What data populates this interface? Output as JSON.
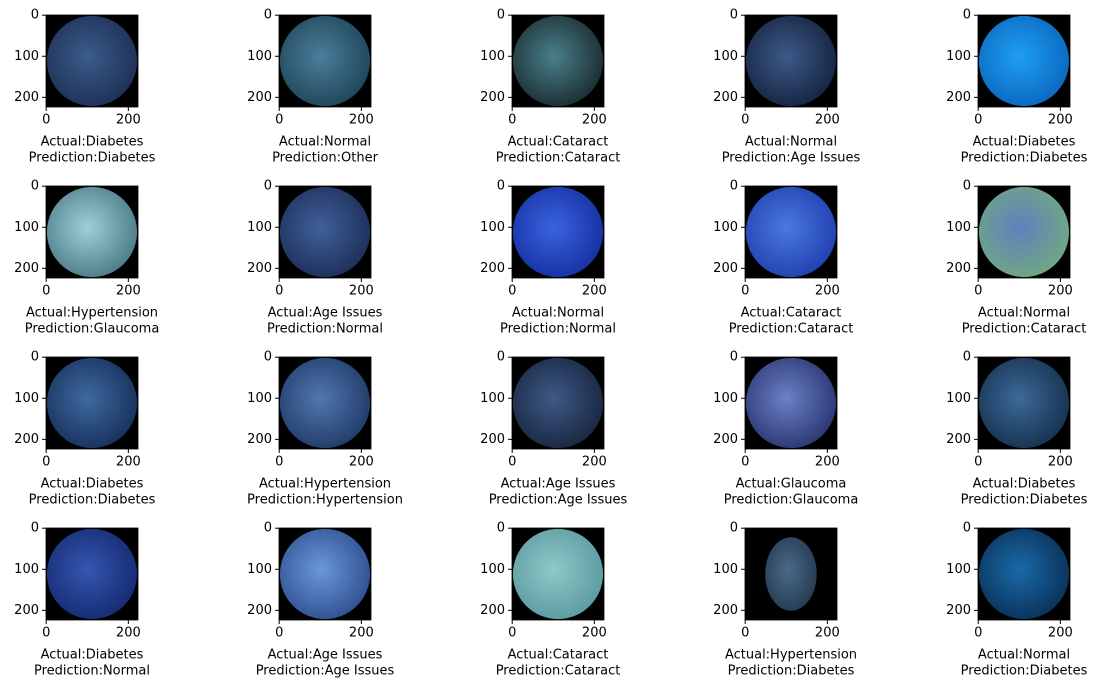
{
  "axes": {
    "xlim": [
      -0.5,
      223.5
    ],
    "ylim": [
      223.5,
      -0.5
    ],
    "xticks": [
      0,
      200
    ],
    "yticks": [
      0,
      100,
      200
    ]
  },
  "panels": [
    {
      "actual": "Actual:Diabetes",
      "prediction": "Prediction:Diabetes"
    },
    {
      "actual": "Actual:Normal",
      "prediction": "Prediction:Other"
    },
    {
      "actual": "Actual:Cataract",
      "prediction": "Prediction:Cataract"
    },
    {
      "actual": "Actual:Normal",
      "prediction": "Prediction:Age Issues"
    },
    {
      "actual": "Actual:Diabetes",
      "prediction": "Prediction:Diabetes"
    },
    {
      "actual": "Actual:Hypertension",
      "prediction": "Prediction:Glaucoma"
    },
    {
      "actual": "Actual:Age Issues",
      "prediction": "Prediction:Normal"
    },
    {
      "actual": "Actual:Normal",
      "prediction": "Prediction:Normal"
    },
    {
      "actual": "Actual:Cataract",
      "prediction": "Prediction:Cataract"
    },
    {
      "actual": "Actual:Normal",
      "prediction": "Prediction:Cataract"
    },
    {
      "actual": "Actual:Diabetes",
      "prediction": "Prediction:Diabetes"
    },
    {
      "actual": "Actual:Hypertension",
      "prediction": "Prediction:Hypertension"
    },
    {
      "actual": "Actual:Age Issues",
      "prediction": "Prediction:Age Issues"
    },
    {
      "actual": "Actual:Glaucoma",
      "prediction": "Prediction:Glaucoma"
    },
    {
      "actual": "Actual:Diabetes",
      "prediction": "Prediction:Diabetes"
    },
    {
      "actual": "Actual:Diabetes",
      "prediction": "Prediction:Normal"
    },
    {
      "actual": "Actual:Age Issues",
      "prediction": "Prediction:Age Issues"
    },
    {
      "actual": "Actual:Cataract",
      "prediction": "Prediction:Cataract"
    },
    {
      "actual": "Actual:Hypertension",
      "prediction": "Prediction:Diabetes"
    },
    {
      "actual": "Actual:Normal",
      "prediction": "Prediction:Diabetes"
    }
  ]
}
